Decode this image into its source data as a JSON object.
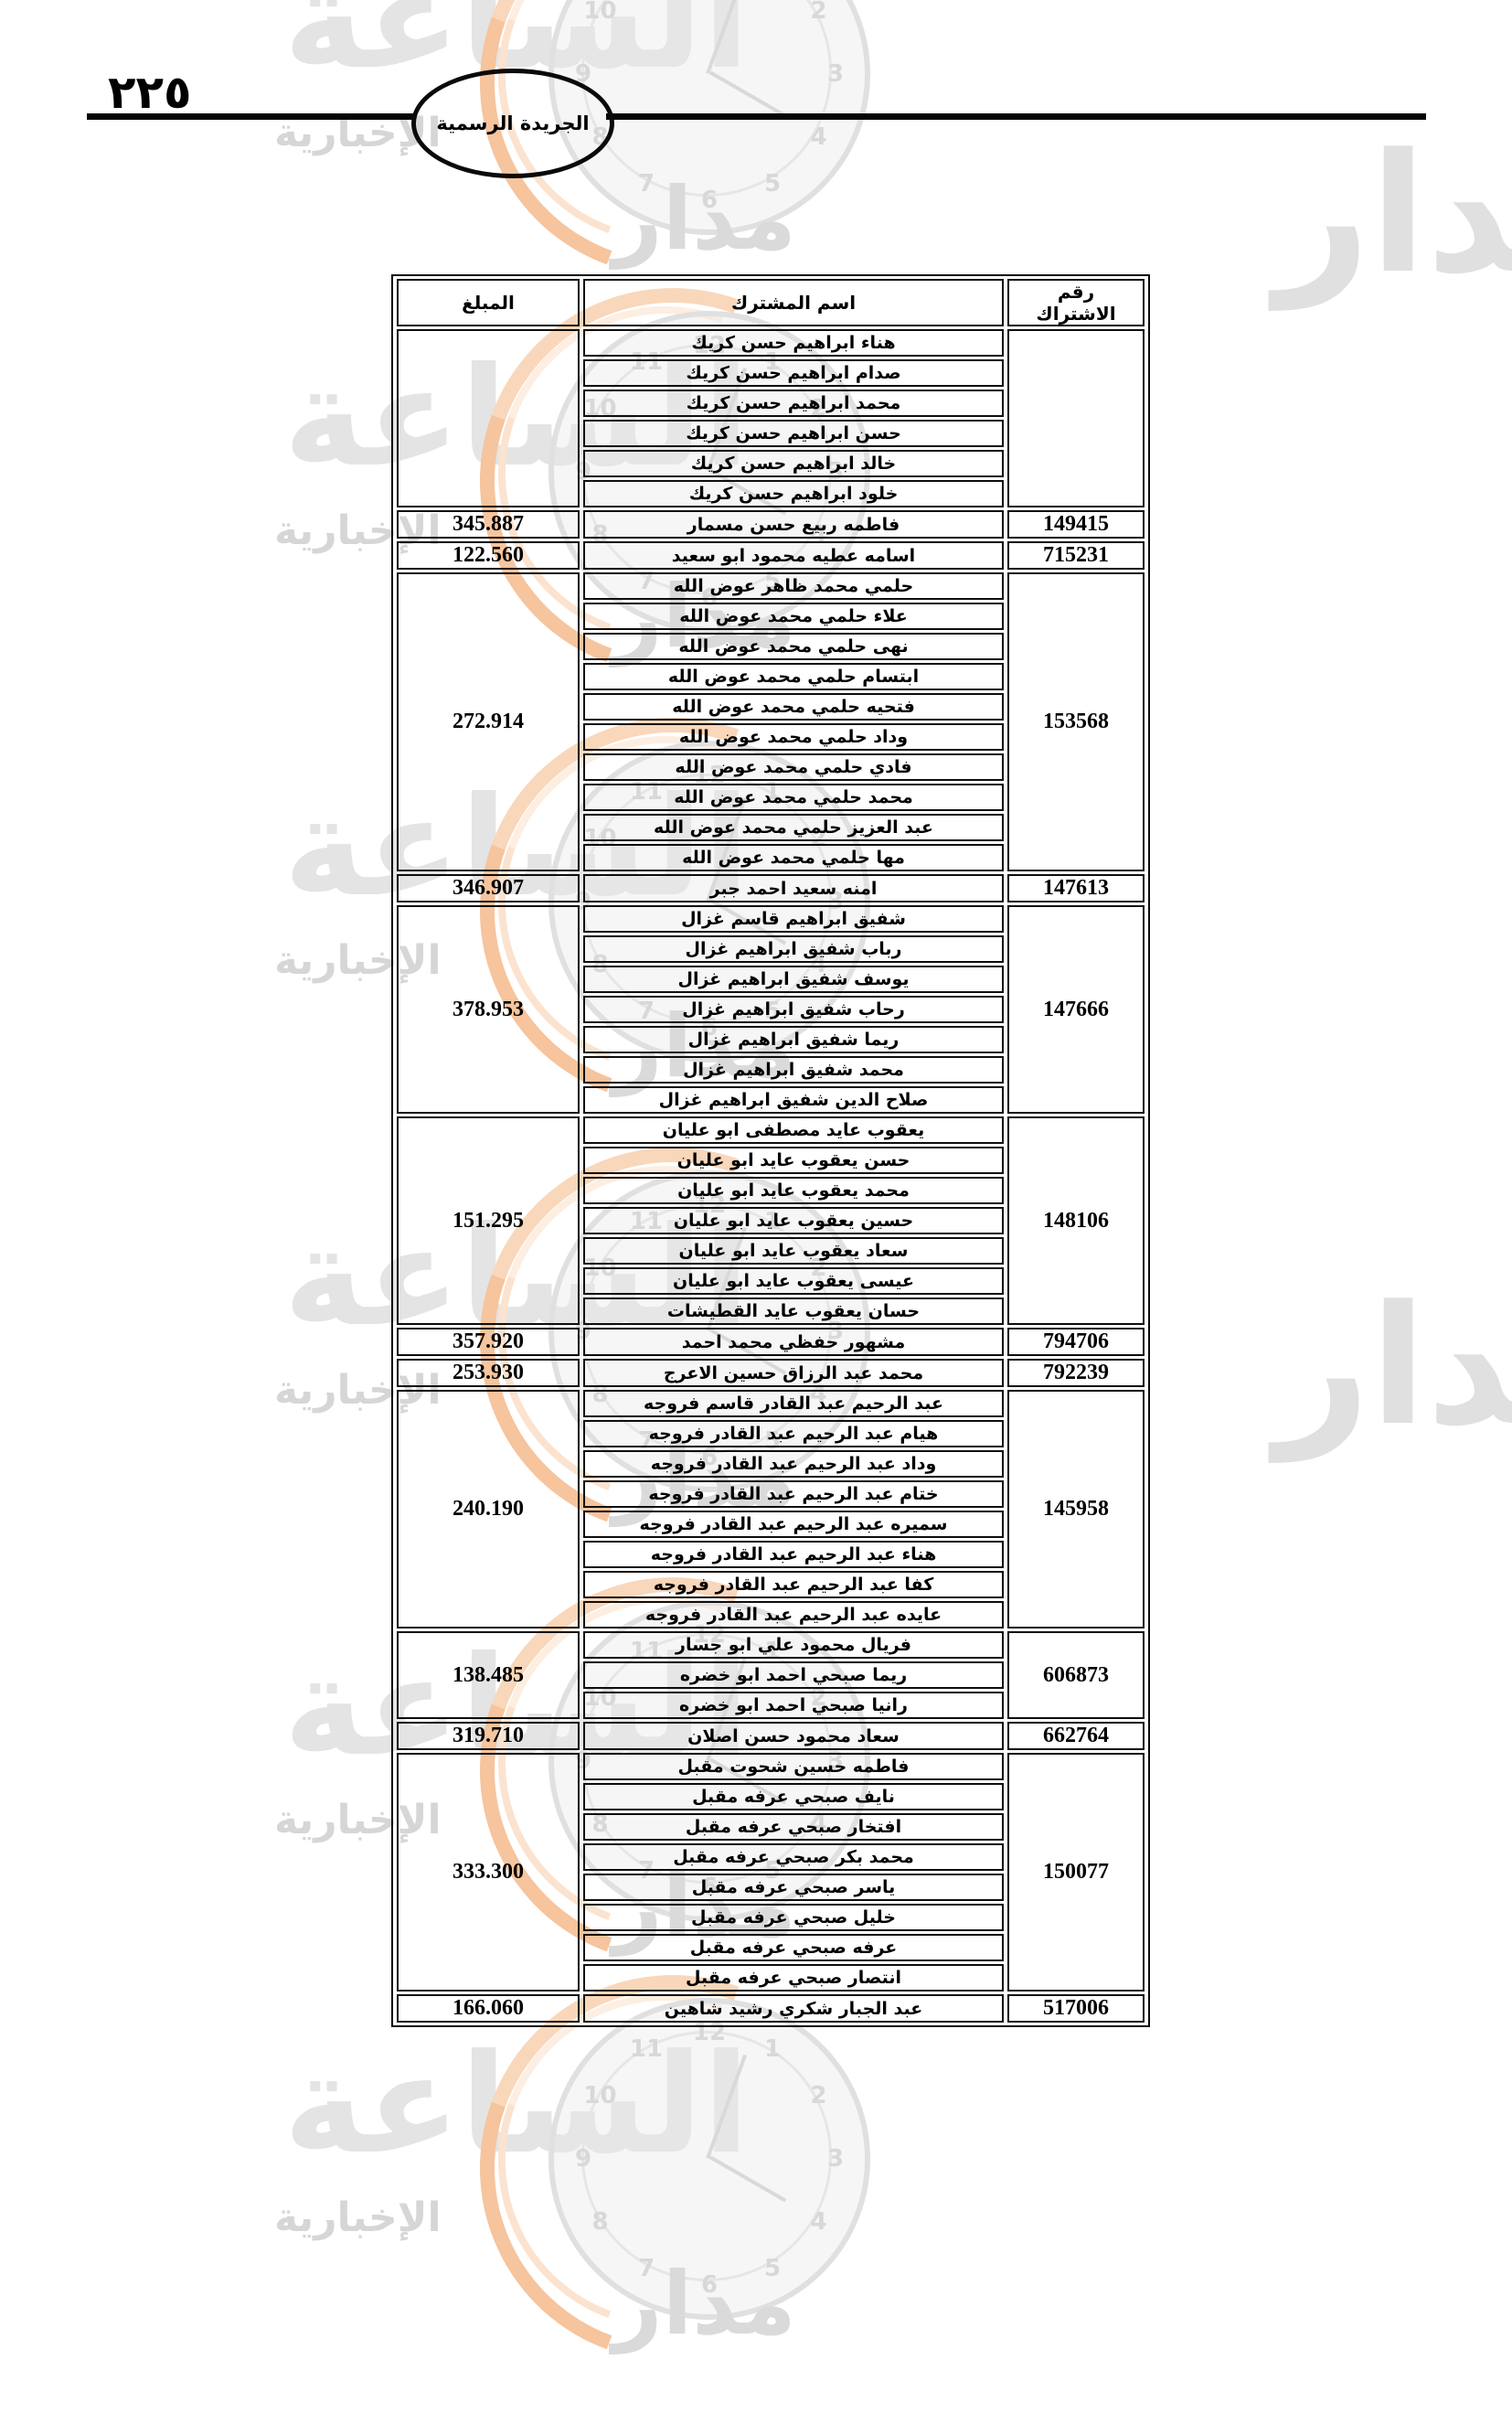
{
  "page": {
    "number": "٢٢٥",
    "banner_title": "الجريدة الرسمية"
  },
  "watermark": {
    "agency_big_word": "الساعة",
    "agency_word": "مدار",
    "agency_label": "الإخبارية",
    "accent_color": "#f6c49d",
    "gray_color": "#dedede",
    "clock_numerals": [
      "12",
      "1",
      "2",
      "3",
      "4",
      "5",
      "6",
      "7",
      "8",
      "9",
      "10",
      "11"
    ]
  },
  "table": {
    "headers": {
      "number": "رقم الاشتراك",
      "name": "اسم المشترك",
      "amount": "المبلغ"
    },
    "groups": [
      {
        "number": "",
        "amount": "",
        "names": [
          "هناء ابراهيم حسن كريك",
          "صدام ابراهيم حسن كريك",
          "محمد ابراهيم حسن كريك",
          "حسن ابراهيم حسن كريك",
          "خالد ابراهيم حسن كريك",
          "خلود ابراهيم حسن كريك"
        ]
      },
      {
        "number": "149415",
        "amount": "345.887",
        "names": [
          "فاطمه ربيع حسن مسمار"
        ]
      },
      {
        "number": "715231",
        "amount": "122.560",
        "names": [
          "اسامه عطيه محمود ابو سعيد"
        ]
      },
      {
        "number": "153568",
        "amount": "272.914",
        "names": [
          "حلمي محمد ظاهر عوض الله",
          "علاء حلمي محمد عوض الله",
          "نهى حلمي محمد عوض الله",
          "ابتسام حلمي محمد عوض الله",
          "فتحيه حلمي محمد عوض الله",
          "وداد حلمي محمد عوض الله",
          "فادي حلمي محمد عوض الله",
          "محمد حلمي محمد عوض الله",
          "عبد العزيز حلمي محمد عوض الله",
          "مها حلمي محمد عوض الله"
        ]
      },
      {
        "number": "147613",
        "amount": "346.907",
        "names": [
          "امنه سعيد احمد جبر"
        ]
      },
      {
        "number": "147666",
        "amount": "378.953",
        "names": [
          "شفيق ابراهيم قاسم غزال",
          "رباب شفيق ابراهيم غزال",
          "يوسف شفيق ابراهيم غزال",
          "رحاب شفيق ابراهيم غزال",
          "ريما شفيق ابراهيم غزال",
          "محمد شفيق ابراهيم غزال",
          "صلاح الدين شفيق ابراهيم غزال"
        ]
      },
      {
        "number": "148106",
        "amount": "151.295",
        "names": [
          "يعقوب عايد مصطفى ابو عليان",
          "حسن يعقوب عايد ابو عليان",
          "محمد يعقوب عايد ابو عليان",
          "حسين يعقوب عايد ابو عليان",
          "سعاد يعقوب عايد ابو عليان",
          "عيسى يعقوب عايد ابو عليان",
          "حسان يعقوب عايد القطيشات"
        ]
      },
      {
        "number": "794706",
        "amount": "357.920",
        "names": [
          "مشهور حفظي محمد احمد"
        ]
      },
      {
        "number": "792239",
        "amount": "253.930",
        "names": [
          "محمد عبد الرزاق حسين الاعرج"
        ]
      },
      {
        "number": "145958",
        "amount": "240.190",
        "names": [
          "عبد الرحيم عبد القادر قاسم فروجه",
          "هيام عبد الرحيم عبد القادر فروجه",
          "وداد عبد الرحيم عبد القادر فروجه",
          "ختام عبد الرحيم عبد القادر فروجه",
          "سميره عبد الرحيم عبد القادر فروجه",
          "هناء عبد الرحيم عبد القادر فروجه",
          "كفا عبد الرحيم عبد القادر فروجه",
          "عايده عبد الرحيم عبد القادر فروجه"
        ]
      },
      {
        "number": "606873",
        "amount": "138.485",
        "names": [
          "فريال محمود علي ابو جسار",
          "ريما صبحي احمد ابو خضره",
          "رانيا صبحي احمد ابو خضره"
        ]
      },
      {
        "number": "662764",
        "amount": "319.710",
        "names": [
          "سعاد محمود حسن اصلان"
        ]
      },
      {
        "number": "150077",
        "amount": "333.300",
        "names": [
          "فاطمه حسين شحوت مقبل",
          "نايف صبحي عرفه مقبل",
          "افتخار صبحي عرفه مقبل",
          "محمد بكر صبحي عرفه مقبل",
          "ياسر صبحي عرفه مقبل",
          "خليل صبحي عرفه مقبل",
          "عرفه صبحي عرفه مقبل",
          "انتصار صبحي عرفه مقبل"
        ]
      },
      {
        "number": "517006",
        "amount": "166.060",
        "names": [
          "عبد الجبار شكري رشيد شاهين"
        ]
      }
    ]
  }
}
